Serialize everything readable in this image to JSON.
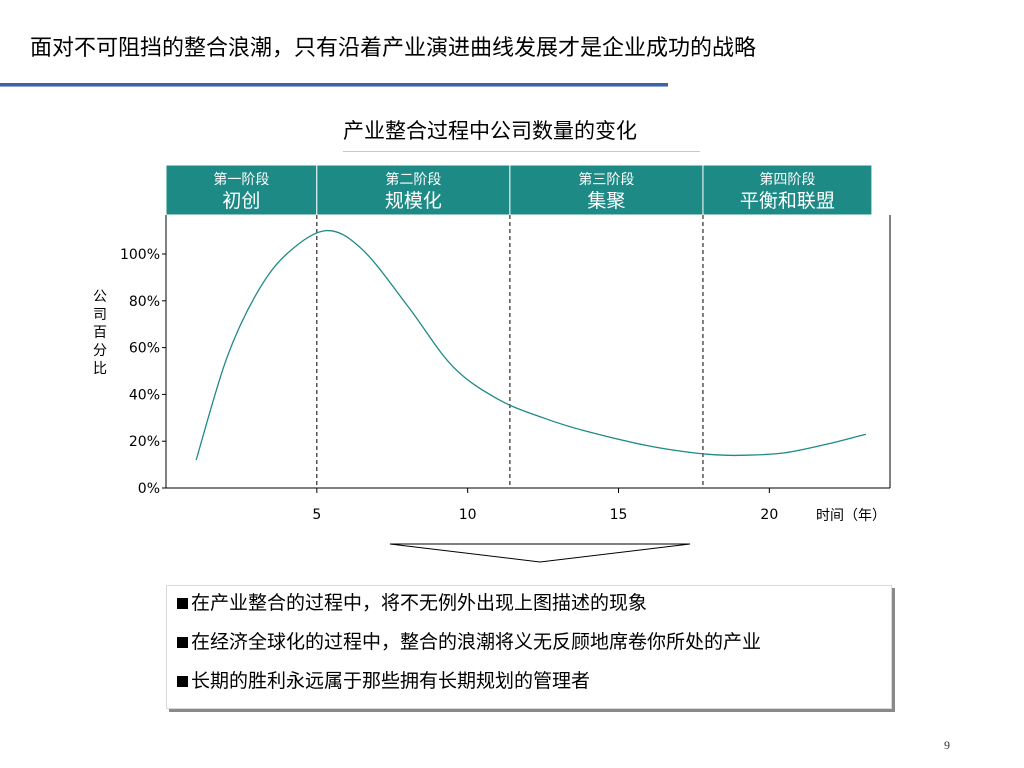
{
  "slide": {
    "title": "面对不可阻挡的整合浪潮，只有沿着产业演进曲线发展才是企业成功的战略",
    "page_number": "9"
  },
  "chart_data": {
    "type": "line",
    "title": "产业整合过程中公司数量的变化",
    "ylabel": "公司百分比",
    "xlabel": "时间（年）",
    "x_ticks": [
      "5",
      "10",
      "15",
      "20"
    ],
    "y_ticks": [
      "0%",
      "20%",
      "40%",
      "60%",
      "80%",
      "100%"
    ],
    "xlim": [
      0,
      24
    ],
    "ylim": [
      0,
      100
    ],
    "phases": [
      {
        "stage": "第一阶段",
        "name": "初创",
        "start": 0,
        "end": 5
      },
      {
        "stage": "第二阶段",
        "name": "规模化",
        "start": 5,
        "end": 11.4
      },
      {
        "stage": "第三阶段",
        "name": "集聚",
        "start": 11.4,
        "end": 17.8
      },
      {
        "stage": "第四阶段",
        "name": "平衡和联盟",
        "start": 17.8,
        "end": 23.4
      }
    ],
    "series": [
      {
        "color": "#1e8a86",
        "x": [
          1.0,
          2.0,
          3.0,
          4.0,
          5.3,
          6.5,
          8.0,
          9.5,
          11.0,
          12.5,
          14.0,
          16.0,
          17.5,
          18.5,
          19.2,
          20.5,
          22.0,
          23.2
        ],
        "y": [
          12,
          55,
          83,
          100,
          110,
          102,
          78,
          52,
          38,
          30,
          24,
          18,
          15,
          14,
          14,
          15,
          19,
          23
        ]
      }
    ],
    "grid": false,
    "header_color": "#1e8a86"
  },
  "notes": {
    "items": [
      "在产业整合的过程中，将不无例外出现上图描述的现象",
      "在经济全球化的过程中，整合的浪潮将义无反顾地席卷你所处的产业",
      "长期的胜利永远属于那些拥有长期规划的管理者"
    ]
  }
}
